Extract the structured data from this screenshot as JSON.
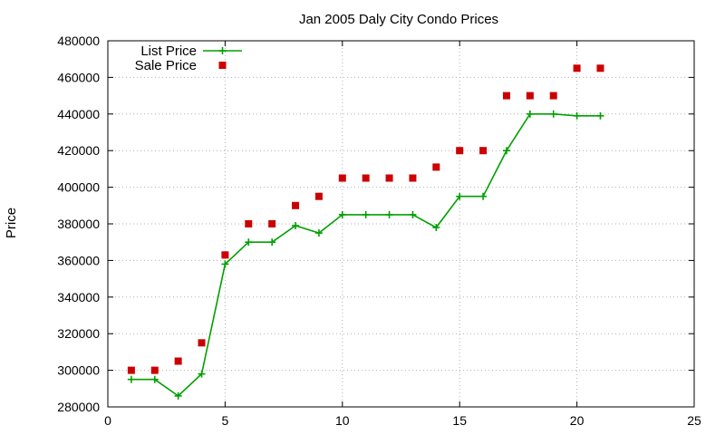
{
  "chart_data": {
    "type": "line",
    "title": "Jan 2005 Daly City Condo Prices",
    "xlabel": "",
    "ylabel": "Price",
    "xlim": [
      0,
      25
    ],
    "ylim": [
      280000,
      480000
    ],
    "xticks": [
      0,
      5,
      10,
      15,
      20,
      25
    ],
    "yticks": [
      280000,
      300000,
      320000,
      340000,
      360000,
      380000,
      400000,
      420000,
      440000,
      460000,
      480000
    ],
    "grid": true,
    "legend_position": "top-left",
    "series": [
      {
        "name": "List Price",
        "style": "line+cross",
        "color": "#00a000",
        "x": [
          1,
          2,
          3,
          4,
          5,
          6,
          7,
          8,
          9,
          10,
          11,
          12,
          13,
          14,
          15,
          16,
          17,
          18,
          19,
          20,
          21
        ],
        "y": [
          295000,
          295000,
          286000,
          298000,
          358000,
          370000,
          370000,
          379000,
          375000,
          385000,
          385000,
          385000,
          385000,
          378000,
          395000,
          395000,
          420000,
          440000,
          440000,
          439000,
          439000
        ]
      },
      {
        "name": "Sale Price",
        "style": "square",
        "color": "#cc0000",
        "x": [
          1,
          2,
          3,
          4,
          5,
          6,
          7,
          8,
          9,
          10,
          11,
          12,
          13,
          14,
          15,
          16,
          17,
          18,
          19,
          20,
          21
        ],
        "y": [
          300000,
          300000,
          305000,
          315000,
          363000,
          380000,
          380000,
          390000,
          395000,
          405000,
          405000,
          405000,
          405000,
          411000,
          420000,
          420000,
          450000,
          450000,
          450000,
          465000,
          465000
        ]
      }
    ]
  }
}
